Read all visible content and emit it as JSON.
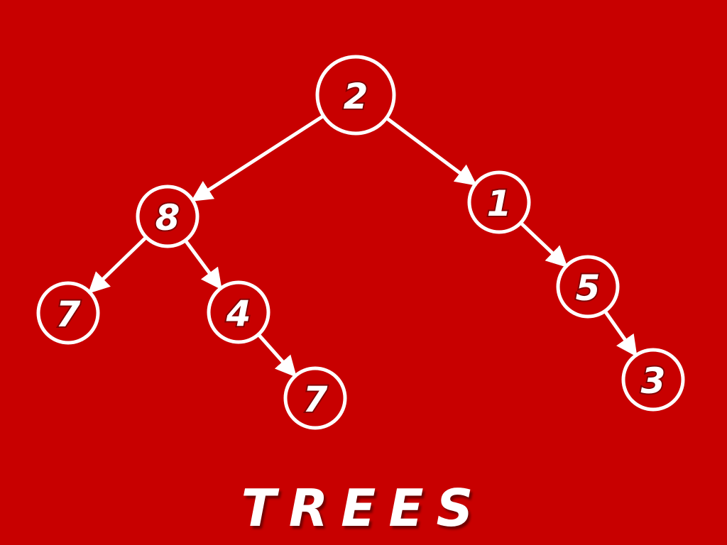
{
  "title": "TREES",
  "colors": {
    "background": "#c80000",
    "foreground": "#ffffff"
  },
  "tree": {
    "nodes": [
      {
        "id": "root",
        "label": "2"
      },
      {
        "id": "left",
        "label": "8"
      },
      {
        "id": "right",
        "label": "1"
      },
      {
        "id": "left-left",
        "label": "7"
      },
      {
        "id": "left-right",
        "label": "4"
      },
      {
        "id": "left-right-right",
        "label": "7"
      },
      {
        "id": "right-right",
        "label": "5"
      },
      {
        "id": "right-right-right",
        "label": "3"
      }
    ],
    "edges": [
      {
        "from": "root",
        "to": "left"
      },
      {
        "from": "root",
        "to": "right"
      },
      {
        "from": "left",
        "to": "left-left"
      },
      {
        "from": "left",
        "to": "left-right"
      },
      {
        "from": "left-right",
        "to": "left-right-right"
      },
      {
        "from": "right",
        "to": "right-right"
      },
      {
        "from": "right-right",
        "to": "right-right-right"
      }
    ]
  }
}
